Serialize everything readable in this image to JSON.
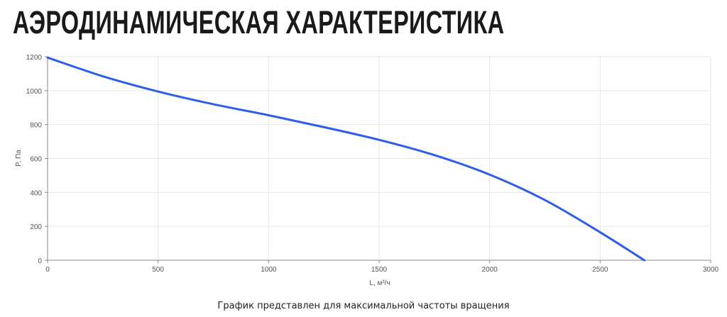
{
  "title": "АЭРОДИНАМИЧЕСКАЯ ХАРАКТЕРИСТИКА",
  "note": "График представлен для максимальной частоты вращения",
  "colors": {
    "line": "#2f5de6",
    "grid": "#e6e6e6",
    "axis": "#888888"
  },
  "chart_data": {
    "type": "line",
    "xlabel": "L, м³/ч",
    "ylabel": "P, Па",
    "xlim": [
      0,
      3000
    ],
    "ylim": [
      0,
      1200
    ],
    "xticks": [
      0,
      500,
      1000,
      1500,
      2000,
      2500,
      3000
    ],
    "yticks": [
      0,
      200,
      400,
      600,
      800,
      1000,
      1200
    ],
    "grid": true,
    "series": [
      {
        "x": [
          0,
          250,
          500,
          750,
          1000,
          1250,
          1500,
          1750,
          2000,
          2250,
          2500,
          2700
        ],
        "y": [
          1195,
          1085,
          995,
          920,
          855,
          785,
          710,
          620,
          505,
          355,
          165,
          0
        ]
      }
    ]
  }
}
